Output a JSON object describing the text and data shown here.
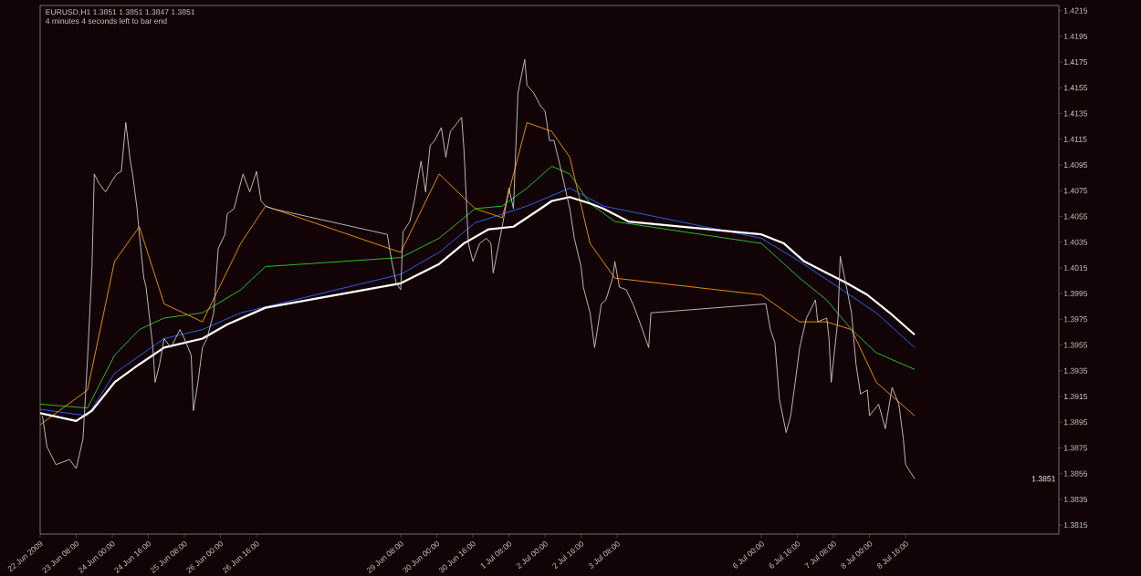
{
  "chart_data": {
    "type": "line",
    "title": "EURUSD,H1  1.3851 1.3851 1.3847 1.3851",
    "subtitle": "4 minutes 4 seconds left to bar end",
    "xlim": [
      "2009-06-22T16:00",
      "2009-07-11T12:00"
    ],
    "ylim": [
      1.3808,
      1.4219
    ],
    "xticks": [
      {
        "value": "2009-06-22T16:00",
        "label": "22 Jun 2009"
      },
      {
        "value": "2009-06-23T08:00",
        "label": "23 Jun 08:00"
      },
      {
        "value": "2009-06-24T00:00",
        "label": "24 Jun 00:00"
      },
      {
        "value": "2009-06-24T16:00",
        "label": "24 Jun 16:00"
      },
      {
        "value": "2009-06-25T08:00",
        "label": "25 Jun 08:00"
      },
      {
        "value": "2009-06-26T00:00",
        "label": "26 Jun 00:00"
      },
      {
        "value": "2009-06-26T16:00",
        "label": "26 Jun 16:00"
      },
      {
        "value": "2009-06-29T08:00",
        "label": "29 Jun 08:00"
      },
      {
        "value": "2009-06-30T00:00",
        "label": "30 Jun 00:00"
      },
      {
        "value": "2009-06-30T16:00",
        "label": "30 Jun 16:00"
      },
      {
        "value": "2009-07-01T08:00",
        "label": "1 Jul 08:00"
      },
      {
        "value": "2009-07-02T00:00",
        "label": "2 Jul 00:00"
      },
      {
        "value": "2009-07-02T16:00",
        "label": "2 Jul 16:00"
      },
      {
        "value": "2009-07-03T08:00",
        "label": "3 Jul 08:00"
      },
      {
        "value": "2009-07-06T00:00",
        "label": "6 Jul 00:00"
      },
      {
        "value": "2009-07-06T16:00",
        "label": "6 Jul 16:00"
      },
      {
        "value": "2009-07-07T08:00",
        "label": "7 Jul 08:00"
      },
      {
        "value": "2009-07-08T00:00",
        "label": "8 Jul 00:00"
      },
      {
        "value": "2009-07-08T16:00",
        "label": "8 Jul 16:00"
      }
    ],
    "yticks": [
      1.4215,
      1.4195,
      1.4175,
      1.4155,
      1.4135,
      1.4115,
      1.4095,
      1.4075,
      1.4055,
      1.4035,
      1.4015,
      1.3995,
      1.3975,
      1.3955,
      1.3935,
      1.3915,
      1.3895,
      1.3875,
      1.3855,
      1.3835,
      1.3815
    ],
    "marker": "none",
    "grid": false,
    "annotations": [
      "1.3851"
    ],
    "series": [
      {
        "color": "#c8c8c8",
        "x": [
          "2009-06-22T17:00",
          "2009-06-22T19:00",
          "2009-06-22T23:00",
          "2009-06-23T05:00",
          "2009-06-23T08:00",
          "2009-06-23T11:00",
          "2009-06-23T13:00",
          "2009-06-23T15:00",
          "2009-06-23T16:00",
          "2009-06-23T18:00",
          "2009-06-23T21:00",
          "2009-06-24T00:00",
          "2009-06-24T02:00",
          "2009-06-24T04:00",
          "2009-06-24T06:00",
          "2009-06-24T08:00",
          "2009-06-24T09:00",
          "2009-06-24T11:00",
          "2009-06-24T12:00",
          "2009-06-24T14:00",
          "2009-06-24T15:00",
          "2009-06-24T18:00",
          "2009-06-24T19:00",
          "2009-06-24T21:00",
          "2009-06-24T23:00",
          "2009-06-25T02:00",
          "2009-06-25T04:00",
          "2009-06-25T06:00",
          "2009-06-25T08:00",
          "2009-06-25T11:00",
          "2009-06-25T12:00",
          "2009-06-25T14:00",
          "2009-06-25T16:00",
          "2009-06-25T18:00",
          "2009-06-25T21:00",
          "2009-06-25T23:00",
          "2009-06-26T02:00",
          "2009-06-26T03:00",
          "2009-06-26T06:00",
          "2009-06-26T10:00",
          "2009-06-26T13:00",
          "2009-06-26T16:00",
          "2009-06-26T18:00",
          "2009-06-26T20:00",
          "2009-06-26T23:00",
          "2009-06-29T02:00",
          "2009-06-29T04:00",
          "2009-06-29T06:00",
          "2009-06-29T08:00",
          "2009-06-29T09:00",
          "2009-06-29T12:00",
          "2009-06-29T14:00",
          "2009-06-29T17:00",
          "2009-06-29T19:00",
          "2009-06-29T21:00",
          "2009-06-29T23:00",
          "2009-06-30T02:00",
          "2009-06-30T04:00",
          "2009-06-30T06:00",
          "2009-06-30T11:00",
          "2009-06-30T12:00",
          "2009-06-30T14:00",
          "2009-06-30T16:00",
          "2009-06-30T19:00",
          "2009-06-30T22:00",
          "2009-07-01T00:00",
          "2009-07-01T01:00",
          "2009-07-01T05:00",
          "2009-07-01T08:00",
          "2009-07-01T10:00",
          "2009-07-01T12:00",
          "2009-07-01T15:00",
          "2009-07-01T16:00",
          "2009-07-01T19:00",
          "2009-07-01T22:00",
          "2009-07-02T00:00",
          "2009-07-02T02:00",
          "2009-07-02T04:00",
          "2009-07-02T07:00",
          "2009-07-02T11:00",
          "2009-07-02T13:00",
          "2009-07-02T16:00",
          "2009-07-02T17:00",
          "2009-07-02T20:00",
          "2009-07-02T22:00",
          "2009-07-03T01:00",
          "2009-07-03T03:00",
          "2009-07-03T06:00",
          "2009-07-03T07:00",
          "2009-07-03T09:00",
          "2009-07-03T12:00",
          "2009-07-03T15:00",
          "2009-07-03T18:00",
          "2009-07-03T22:00",
          "2009-07-03T23:00",
          "2009-07-06T02:00",
          "2009-07-06T04:00",
          "2009-07-06T06:00",
          "2009-07-06T08:00",
          "2009-07-06T11:00",
          "2009-07-06T13:00",
          "2009-07-06T15:00",
          "2009-07-06T17:00",
          "2009-07-06T20:00",
          "2009-07-07T00:00",
          "2009-07-07T01:00",
          "2009-07-07T05:00",
          "2009-07-07T06:00",
          "2009-07-07T07:00",
          "2009-07-07T10:00",
          "2009-07-07T11:00",
          "2009-07-07T13:00",
          "2009-07-07T16:00",
          "2009-07-07T18:00",
          "2009-07-07T20:00",
          "2009-07-07T23:00",
          "2009-07-08T00:00",
          "2009-07-08T04:00",
          "2009-07-08T07:00",
          "2009-07-08T10:00",
          "2009-07-08T13:00",
          "2009-07-08T15:00",
          "2009-07-08T16:00",
          "2009-07-08T20:00"
        ],
        "values": [
          1.39,
          1.3876,
          1.3862,
          1.3866,
          1.3859,
          1.3882,
          1.3944,
          1.4016,
          1.4088,
          1.4081,
          1.4074,
          1.4083,
          1.4088,
          1.409,
          1.4128,
          1.4098,
          1.4088,
          1.4061,
          1.4041,
          1.4007,
          1.4,
          1.3953,
          1.3926,
          1.394,
          1.396,
          1.3953,
          1.396,
          1.3967,
          1.396,
          1.3947,
          1.3904,
          1.3926,
          1.3953,
          1.396,
          1.398,
          1.403,
          1.4041,
          1.4057,
          1.4061,
          1.4088,
          1.4074,
          1.409,
          1.4067,
          1.4063,
          1.4061,
          1.4041,
          1.402,
          1.4003,
          1.3998,
          1.4043,
          1.4051,
          1.4067,
          1.4098,
          1.4074,
          1.411,
          1.4114,
          1.4124,
          1.4101,
          1.4121,
          1.4132,
          1.4108,
          1.4034,
          1.402,
          1.4034,
          1.4038,
          1.4034,
          1.4011,
          1.4047,
          1.4077,
          1.4061,
          1.4151,
          1.4177,
          1.4157,
          1.4151,
          1.4141,
          1.4137,
          1.4114,
          1.4114,
          1.4092,
          1.4061,
          1.4038,
          1.4016,
          1.4,
          1.398,
          1.3953,
          1.3987,
          1.399,
          1.4007,
          1.402,
          1.4,
          1.3998,
          1.3987,
          1.3973,
          1.3953,
          1.398,
          1.3987,
          1.3967,
          1.3957,
          1.3913,
          1.3887,
          1.39,
          1.3926,
          1.3953,
          1.3976,
          1.399,
          1.3973,
          1.3976,
          1.396,
          1.3926,
          1.3976,
          1.4024,
          1.4007,
          1.398,
          1.394,
          1.3917,
          1.392,
          1.39,
          1.3909,
          1.389,
          1.3922,
          1.3909,
          1.3882,
          1.3862,
          1.3851
        ]
      },
      {
        "color": "#ff9900",
        "x": [
          "2009-06-22T16:00",
          "2009-06-23T13:00",
          "2009-06-24T01:00",
          "2009-06-24T12:00",
          "2009-06-24T23:00",
          "2009-06-25T16:00",
          "2009-06-26T09:00",
          "2009-06-26T20:00",
          "2009-06-29T08:00",
          "2009-06-30T01:00",
          "2009-06-30T17:00",
          "2009-07-01T05:00",
          "2009-07-01T16:00",
          "2009-07-02T03:00",
          "2009-07-02T11:00",
          "2009-07-02T20:00",
          "2009-07-03T07:00",
          "2009-07-06T00:00",
          "2009-07-06T17:00",
          "2009-07-07T05:00",
          "2009-07-07T16:00",
          "2009-07-08T03:00",
          "2009-07-08T20:00"
        ],
        "values": [
          1.3893,
          1.392,
          1.402,
          1.4047,
          1.3987,
          1.3973,
          1.4034,
          1.4063,
          1.4027,
          1.4088,
          1.4061,
          1.4054,
          1.4128,
          1.4121,
          1.4101,
          1.4034,
          1.4007,
          1.3994,
          1.3973,
          1.3973,
          1.3967,
          1.3926,
          1.39
        ]
      },
      {
        "color": "#33cc33",
        "x": [
          "2009-06-22T16:00",
          "2009-06-23T13:00",
          "2009-06-24T01:00",
          "2009-06-24T12:00",
          "2009-06-24T23:00",
          "2009-06-25T16:00",
          "2009-06-26T09:00",
          "2009-06-26T20:00",
          "2009-06-29T08:00",
          "2009-06-30T01:00",
          "2009-06-30T17:00",
          "2009-07-01T05:00",
          "2009-07-01T16:00",
          "2009-07-02T03:00",
          "2009-07-02T11:00",
          "2009-07-02T20:00",
          "2009-07-03T07:00",
          "2009-07-06T00:00",
          "2009-07-06T17:00",
          "2009-07-07T05:00",
          "2009-07-07T16:00",
          "2009-07-08T03:00",
          "2009-07-08T20:00"
        ],
        "values": [
          1.3909,
          1.3906,
          1.3947,
          1.3967,
          1.3976,
          1.398,
          1.3998,
          1.4016,
          1.4023,
          1.4038,
          1.4061,
          1.4063,
          1.4077,
          1.4094,
          1.4088,
          1.4065,
          1.4051,
          1.4034,
          1.4007,
          1.399,
          1.3967,
          1.3949,
          1.3936
        ]
      },
      {
        "color": "#3366ff",
        "x": [
          "2009-06-22T16:00",
          "2009-06-23T13:00",
          "2009-06-24T01:00",
          "2009-06-24T23:00",
          "2009-06-25T16:00",
          "2009-06-26T09:00",
          "2009-06-29T08:00",
          "2009-06-30T01:00",
          "2009-06-30T17:00",
          "2009-07-01T16:00",
          "2009-07-02T11:00",
          "2009-07-03T02:00",
          "2009-07-06T00:00",
          "2009-07-06T17:00",
          "2009-07-07T10:00",
          "2009-07-08T03:00",
          "2009-07-08T20:00"
        ],
        "values": [
          1.3905,
          1.39,
          1.3933,
          1.396,
          1.3967,
          1.398,
          1.401,
          1.4027,
          1.405,
          1.4063,
          1.4077,
          1.4063,
          1.4038,
          1.402,
          1.4,
          1.398,
          1.3953
        ]
      },
      {
        "color": "#ffffff",
        "x": [
          "2009-06-22T16:00",
          "2009-06-23T08:00",
          "2009-06-23T15:00",
          "2009-06-24T01:00",
          "2009-06-24T12:00",
          "2009-06-24T23:00",
          "2009-06-25T16:00",
          "2009-06-26T03:00",
          "2009-06-26T20:00",
          "2009-06-29T08:00",
          "2009-06-30T01:00",
          "2009-06-30T12:00",
          "2009-06-30T23:00",
          "2009-07-01T10:00",
          "2009-07-01T22:00",
          "2009-07-02T03:00",
          "2009-07-02T11:00",
          "2009-07-02T20:00",
          "2009-07-03T02:00",
          "2009-07-03T13:00",
          "2009-07-06T00:00",
          "2009-07-06T10:00",
          "2009-07-06T19:00",
          "2009-07-07T05:00",
          "2009-07-07T14:00",
          "2009-07-07T23:00",
          "2009-07-08T09:00",
          "2009-07-08T20:00"
        ],
        "values": [
          1.3902,
          1.3896,
          1.3904,
          1.3926,
          1.394,
          1.3953,
          1.396,
          1.3971,
          1.3984,
          1.4003,
          1.4018,
          1.4034,
          1.4045,
          1.4047,
          1.4061,
          1.4067,
          1.407,
          1.4065,
          1.4061,
          1.4051,
          1.4041,
          1.4034,
          1.402,
          1.4011,
          1.4003,
          1.3994,
          1.398,
          1.3963
        ]
      }
    ]
  }
}
